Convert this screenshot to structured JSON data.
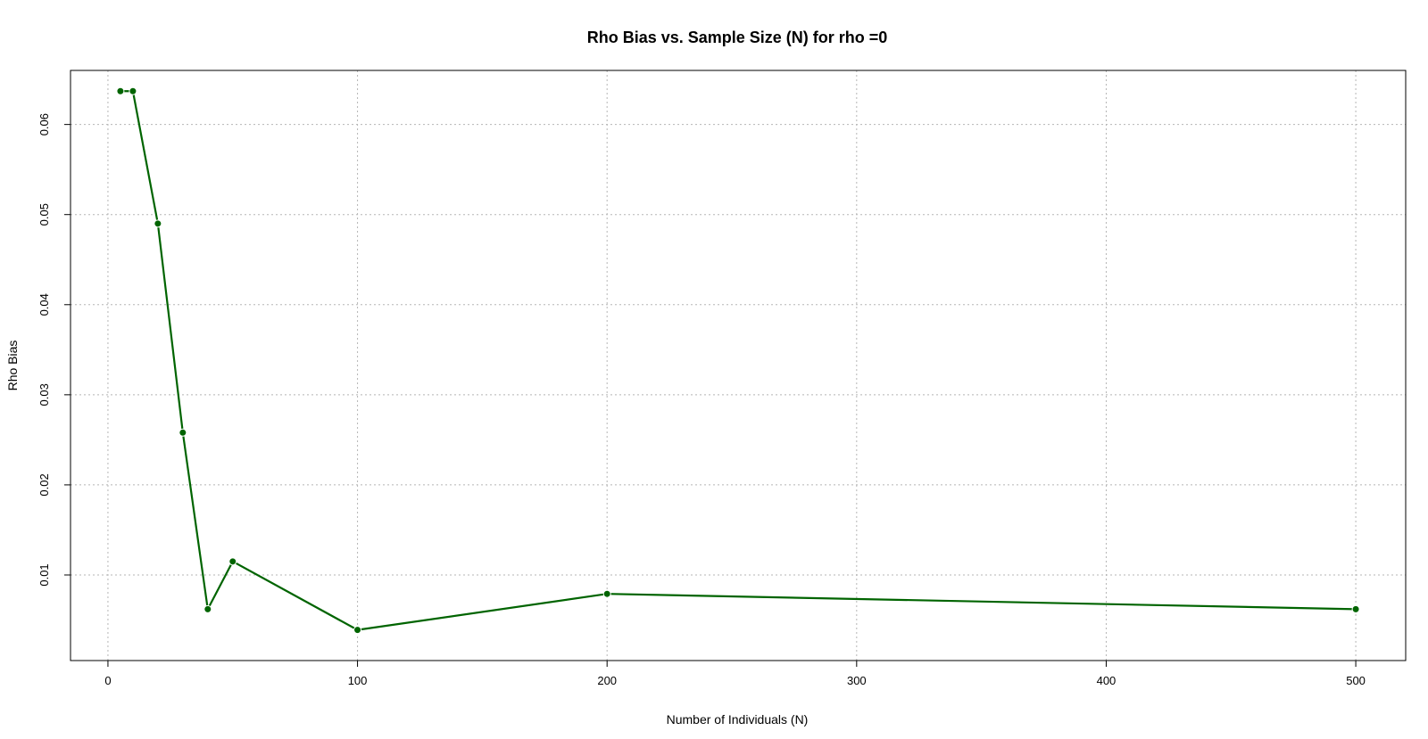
{
  "chart_data": {
    "type": "line",
    "title": "Rho Bias vs. Sample Size (N) for rho =0",
    "xlabel": "Number of Individuals (N)",
    "ylabel": "Rho Bias",
    "xlim": [
      -15,
      520
    ],
    "ylim": [
      0.0005,
      0.066
    ],
    "xticks": [
      0,
      100,
      200,
      300,
      400,
      500
    ],
    "yticks": [
      0.01,
      0.02,
      0.03,
      0.04,
      0.05,
      0.06
    ],
    "ytick_labels": [
      "0.01",
      "0.02",
      "0.03",
      "0.04",
      "0.05",
      "0.06"
    ],
    "grid": true,
    "series": [
      {
        "color": "#006400",
        "x": [
          5,
          10,
          20,
          30,
          40,
          50,
          100,
          200,
          500
        ],
        "y": [
          0.0637,
          0.0637,
          0.049,
          0.0258,
          0.0062,
          0.0115,
          0.0039,
          0.0079,
          0.0062
        ]
      }
    ]
  }
}
